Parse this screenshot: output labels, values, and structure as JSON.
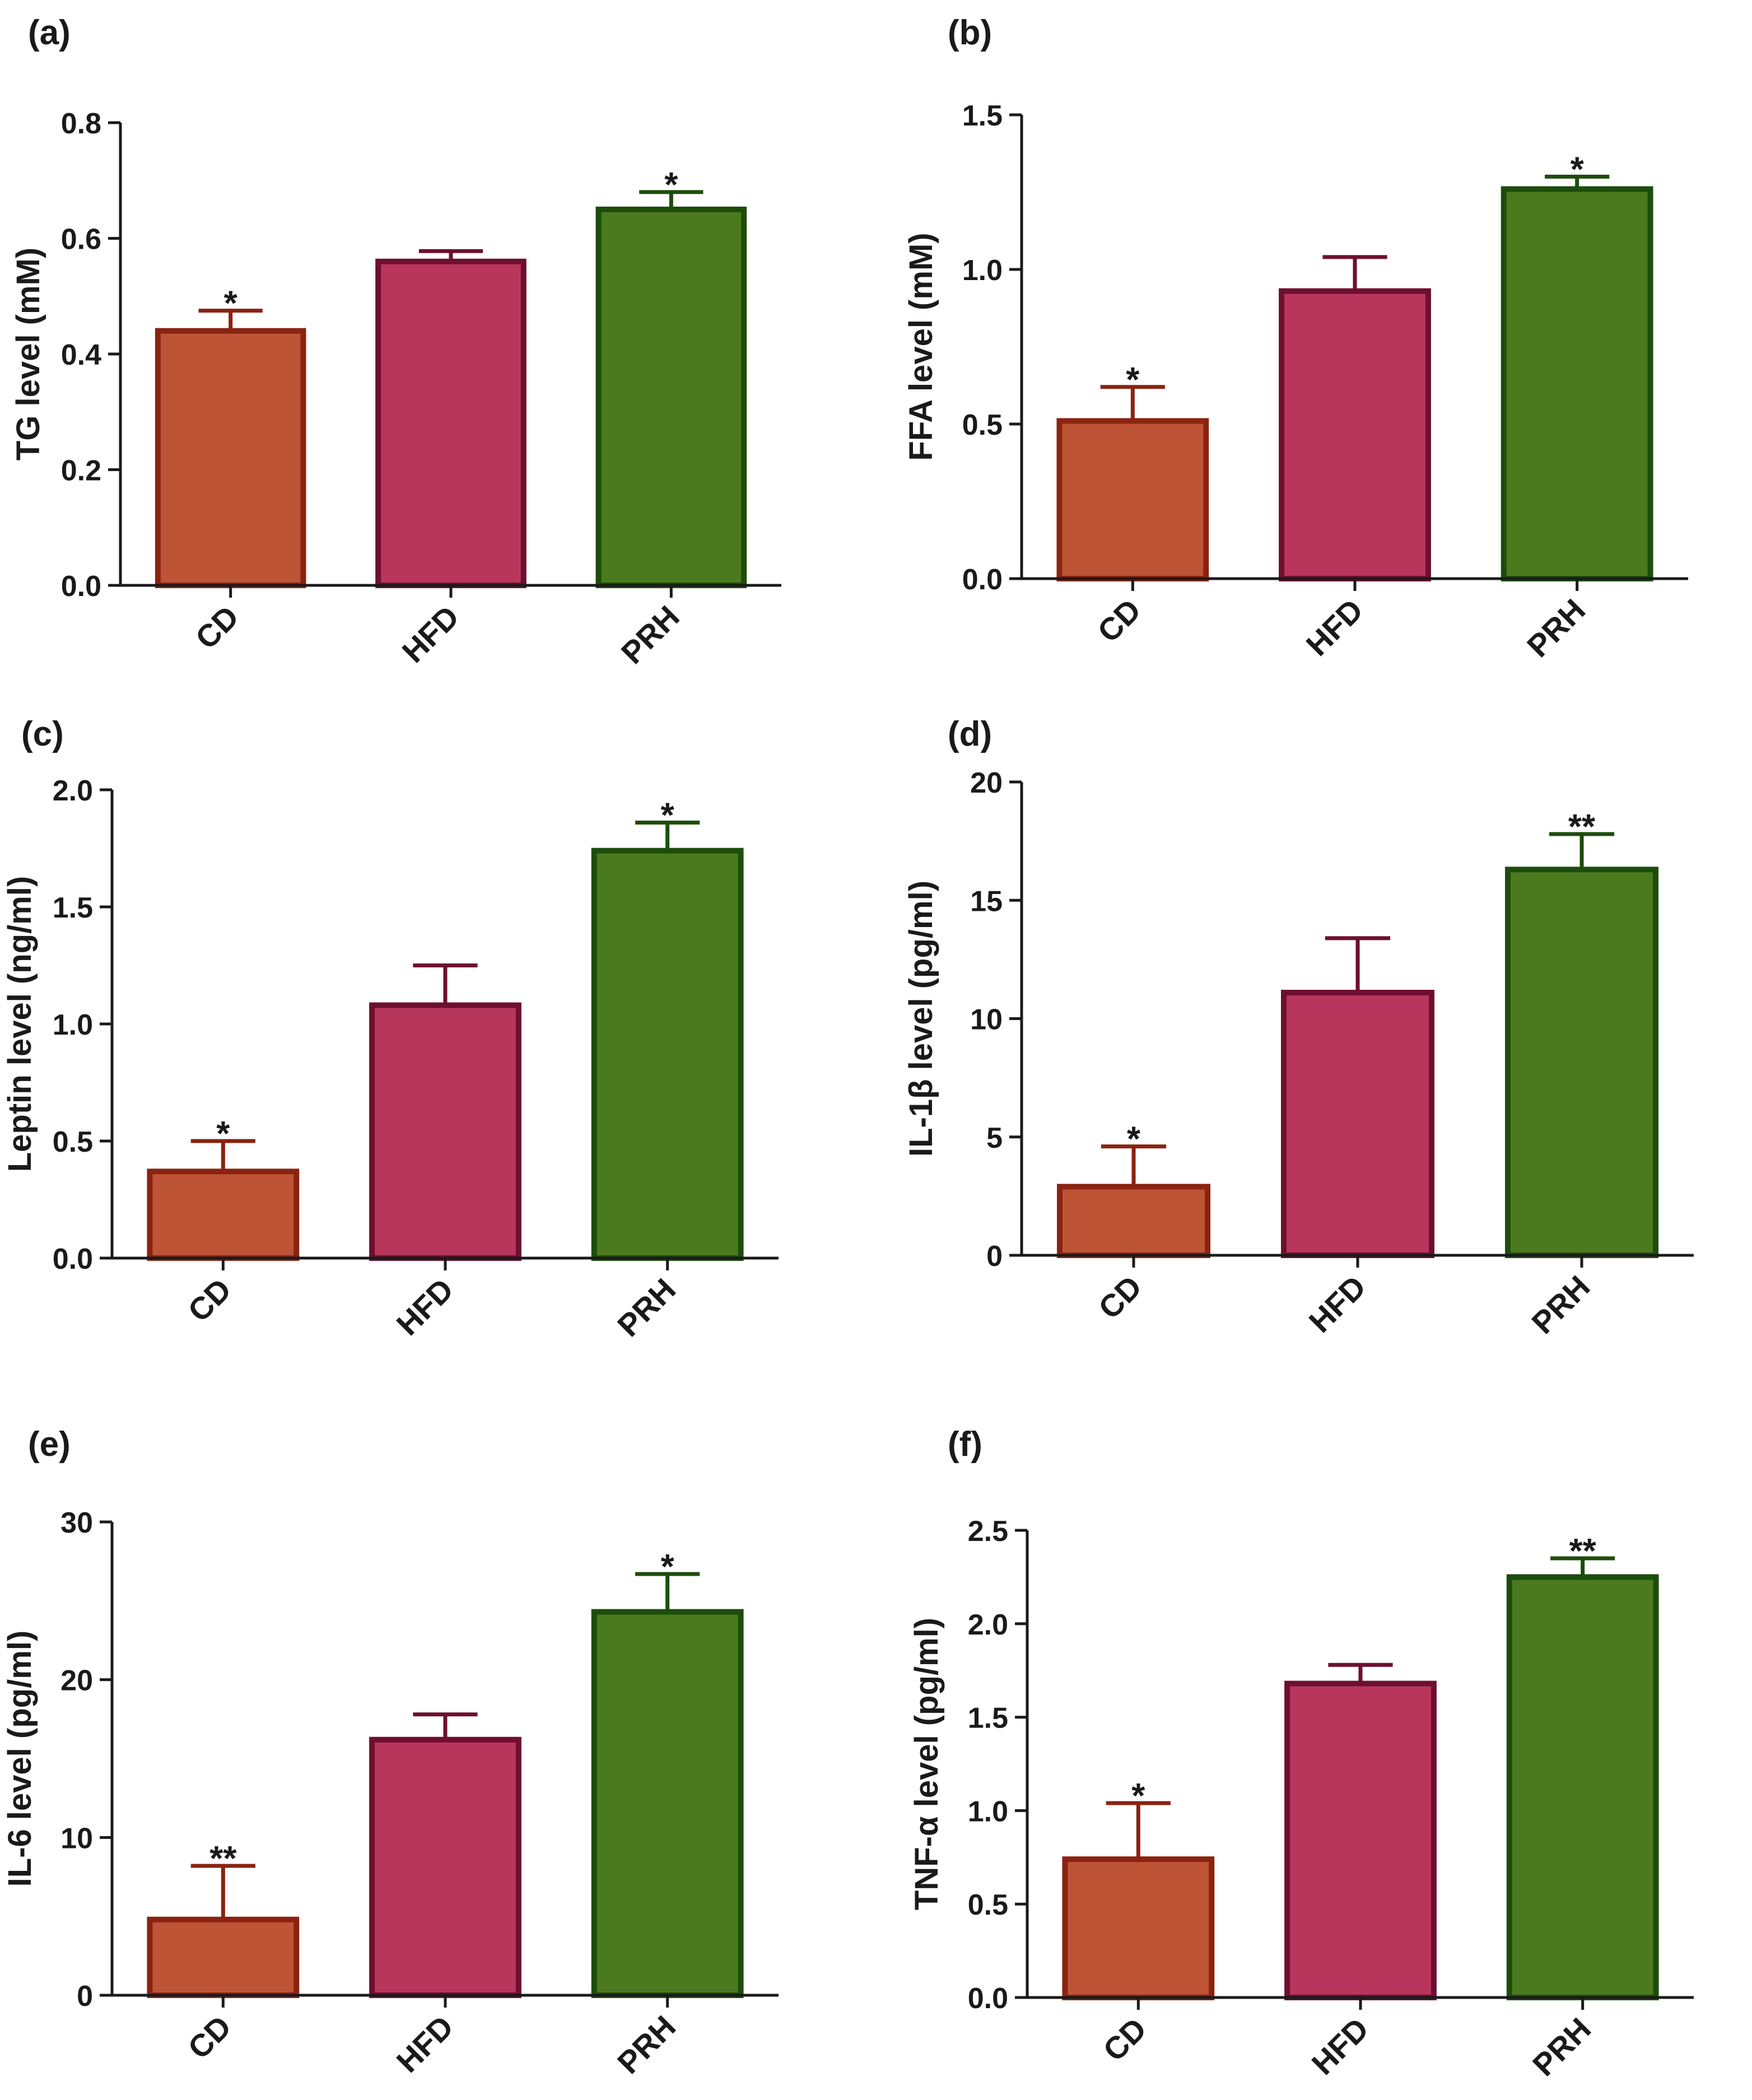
{
  "colors": {
    "CD": "#bd5436",
    "HFD": "#b8365c",
    "PRH": "#4b7a1e",
    "CD_edge": "#8a2310",
    "HFD_edge": "#6e0f30",
    "PRH_edge": "#1d4d0c",
    "axis": "#1a1a1a"
  },
  "chart_data": [
    {
      "type": "bar",
      "panel_label": "(a)",
      "ylabel": "TG level (mM)",
      "categories": [
        "CD",
        "HFD",
        "PRH"
      ],
      "values": [
        0.44,
        0.56,
        0.65
      ],
      "errors": [
        0.035,
        0.018,
        0.03
      ],
      "significance": [
        "*",
        "",
        "*"
      ],
      "ylim": [
        0,
        0.8
      ],
      "yticks": [
        0.0,
        0.2,
        0.4,
        0.6,
        0.8
      ],
      "ytick_labels": [
        "0.0",
        "0.2",
        "0.4",
        "0.6",
        "0.8"
      ]
    },
    {
      "type": "bar",
      "panel_label": "(b)",
      "ylabel": "FFA level (mM)",
      "categories": [
        "CD",
        "HFD",
        "PRH"
      ],
      "values": [
        0.51,
        0.93,
        1.26
      ],
      "errors": [
        0.11,
        0.11,
        0.04
      ],
      "significance": [
        "*",
        "",
        "*"
      ],
      "ylim": [
        0,
        1.5
      ],
      "yticks": [
        0.0,
        0.5,
        1.0,
        1.5
      ],
      "ytick_labels": [
        "0.0",
        "0.5",
        "1.0",
        "1.5"
      ]
    },
    {
      "type": "bar",
      "panel_label": "(c)",
      "ylabel": "Leptin level (ng/ml)",
      "categories": [
        "CD",
        "HFD",
        "PRH"
      ],
      "values": [
        0.37,
        1.08,
        1.74
      ],
      "errors": [
        0.13,
        0.17,
        0.12
      ],
      "significance": [
        "*",
        "",
        "*"
      ],
      "ylim": [
        0,
        2.0
      ],
      "yticks": [
        0.0,
        0.5,
        1.0,
        1.5,
        2.0
      ],
      "ytick_labels": [
        "0.0",
        "0.5",
        "1.0",
        "1.5",
        "2.0"
      ]
    },
    {
      "type": "bar",
      "panel_label": "(d)",
      "ylabel": "IL-1β level (pg/ml)",
      "categories": [
        "CD",
        "HFD",
        "PRH"
      ],
      "values": [
        2.9,
        11.1,
        16.3
      ],
      "errors": [
        1.7,
        2.3,
        1.5
      ],
      "significance": [
        "*",
        "",
        "**"
      ],
      "ylim": [
        0,
        20
      ],
      "yticks": [
        0,
        5,
        10,
        15,
        20
      ],
      "ytick_labels": [
        "0",
        "5",
        "10",
        "15",
        "20"
      ]
    },
    {
      "type": "bar",
      "panel_label": "(e)",
      "ylabel": "IL-6 level (pg/ml)",
      "categories": [
        "CD",
        "HFD",
        "PRH"
      ],
      "values": [
        4.8,
        16.2,
        24.3
      ],
      "errors": [
        3.4,
        1.6,
        2.4
      ],
      "significance": [
        "**",
        "",
        "*"
      ],
      "ylim": [
        0,
        30
      ],
      "yticks": [
        0,
        10,
        20,
        30
      ],
      "ytick_labels": [
        "0",
        "10",
        "20",
        "30"
      ]
    },
    {
      "type": "bar",
      "panel_label": "(f)",
      "ylabel": "TNF-α level (pg/ml)",
      "categories": [
        "CD",
        "HFD",
        "PRH"
      ],
      "values": [
        0.74,
        1.68,
        2.25
      ],
      "errors": [
        0.3,
        0.1,
        0.1
      ],
      "significance": [
        "*",
        "",
        "**"
      ],
      "ylim": [
        0,
        2.5
      ],
      "yticks": [
        0.0,
        0.5,
        1.0,
        1.5,
        2.0,
        2.5
      ],
      "ytick_labels": [
        "0.0",
        "0.5",
        "1.0",
        "1.5",
        "2.0",
        "2.5"
      ]
    }
  ]
}
